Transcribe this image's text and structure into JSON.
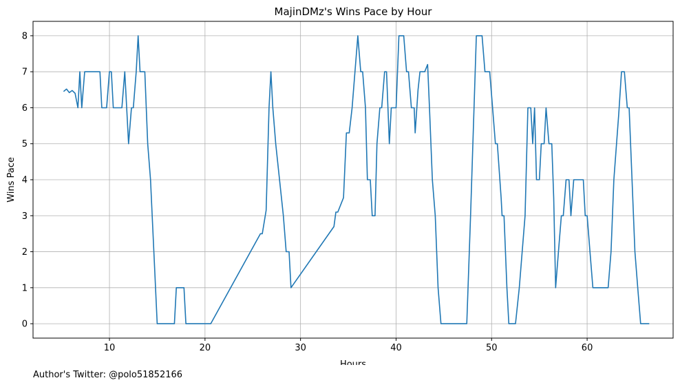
{
  "chart_data": {
    "type": "line",
    "title": "MajinDMz's Wins Pace by Hour",
    "xlabel": "Hours",
    "ylabel": "Wins Pace",
    "xlim": [
      2.0,
      69.0
    ],
    "ylim": [
      -0.4,
      8.4
    ],
    "xticks": [
      10,
      20,
      30,
      40,
      50,
      60
    ],
    "yticks": [
      0,
      1,
      2,
      3,
      4,
      5,
      6,
      7,
      8
    ],
    "grid": true,
    "line_color": "#1f77b4",
    "series": [
      {
        "points": [
          [
            5.2,
            6.45
          ],
          [
            5.5,
            6.52
          ],
          [
            5.8,
            6.42
          ],
          [
            6.1,
            6.48
          ],
          [
            6.4,
            6.4
          ],
          [
            6.7,
            6.0
          ],
          [
            6.9,
            7.0
          ],
          [
            7.1,
            6.0
          ],
          [
            7.4,
            7.0
          ],
          [
            9.0,
            7.0
          ],
          [
            9.2,
            6.0
          ],
          [
            9.7,
            6.0
          ],
          [
            10.0,
            7.0
          ],
          [
            10.2,
            7.0
          ],
          [
            10.4,
            6.0
          ],
          [
            11.3,
            6.0
          ],
          [
            11.6,
            7.0
          ],
          [
            12.0,
            5.0
          ],
          [
            12.3,
            6.0
          ],
          [
            12.5,
            6.0
          ],
          [
            12.8,
            7.0
          ],
          [
            13.0,
            8.0
          ],
          [
            13.2,
            7.0
          ],
          [
            13.7,
            7.0
          ],
          [
            14.0,
            5.0
          ],
          [
            14.3,
            4.0
          ],
          [
            15.0,
            0.0
          ],
          [
            16.8,
            0.0
          ],
          [
            17.0,
            1.0
          ],
          [
            17.8,
            1.0
          ],
          [
            18.0,
            0.0
          ],
          [
            20.6,
            0.0
          ],
          [
            25.8,
            2.5
          ],
          [
            26.0,
            2.5
          ],
          [
            26.4,
            3.15
          ],
          [
            26.7,
            6.0
          ],
          [
            26.9,
            7.0
          ],
          [
            27.1,
            6.0
          ],
          [
            27.4,
            5.0
          ],
          [
            28.2,
            3.0
          ],
          [
            28.5,
            2.0
          ],
          [
            28.8,
            2.0
          ],
          [
            29.0,
            1.0
          ],
          [
            33.5,
            2.7
          ],
          [
            33.7,
            3.1
          ],
          [
            33.9,
            3.1
          ],
          [
            34.5,
            3.5
          ],
          [
            34.8,
            5.3
          ],
          [
            35.1,
            5.3
          ],
          [
            35.4,
            6.0
          ],
          [
            36.0,
            8.0
          ],
          [
            36.3,
            7.0
          ],
          [
            36.5,
            7.0
          ],
          [
            36.8,
            6.0
          ],
          [
            37.0,
            4.0
          ],
          [
            37.3,
            4.0
          ],
          [
            37.5,
            3.0
          ],
          [
            37.8,
            3.0
          ],
          [
            38.0,
            5.0
          ],
          [
            38.3,
            6.0
          ],
          [
            38.5,
            6.0
          ],
          [
            38.8,
            7.0
          ],
          [
            39.0,
            7.0
          ],
          [
            39.3,
            5.0
          ],
          [
            39.5,
            6.0
          ],
          [
            40.0,
            6.0
          ],
          [
            40.3,
            8.0
          ],
          [
            40.8,
            8.0
          ],
          [
            41.1,
            7.0
          ],
          [
            41.3,
            7.0
          ],
          [
            41.6,
            6.0
          ],
          [
            41.9,
            6.0
          ],
          [
            42.0,
            5.3
          ],
          [
            42.3,
            6.5
          ],
          [
            42.5,
            7.0
          ],
          [
            43.0,
            7.0
          ],
          [
            43.3,
            7.2
          ],
          [
            43.5,
            6.0
          ],
          [
            43.8,
            4.0
          ],
          [
            44.1,
            3.0
          ],
          [
            44.4,
            1.0
          ],
          [
            44.7,
            0.0
          ],
          [
            47.4,
            0.0
          ],
          [
            47.8,
            3.0
          ],
          [
            48.4,
            8.0
          ],
          [
            49.0,
            8.0
          ],
          [
            49.3,
            7.0
          ],
          [
            49.8,
            7.0
          ],
          [
            50.1,
            6.0
          ],
          [
            50.4,
            5.0
          ],
          [
            50.6,
            5.0
          ],
          [
            51.0,
            3.5
          ],
          [
            51.1,
            3.0
          ],
          [
            51.3,
            3.0
          ],
          [
            51.6,
            1.0
          ],
          [
            51.8,
            0.0
          ],
          [
            52.5,
            0.0
          ],
          [
            52.9,
            1.0
          ],
          [
            53.2,
            2.0
          ],
          [
            53.5,
            3.0
          ],
          [
            53.8,
            6.0
          ],
          [
            54.1,
            6.0
          ],
          [
            54.3,
            5.0
          ],
          [
            54.5,
            6.0
          ],
          [
            54.7,
            4.0
          ],
          [
            55.0,
            4.0
          ],
          [
            55.2,
            5.0
          ],
          [
            55.5,
            5.0
          ],
          [
            55.7,
            6.0
          ],
          [
            56.0,
            5.0
          ],
          [
            56.3,
            5.0
          ],
          [
            56.5,
            3.5
          ],
          [
            56.7,
            1.0
          ],
          [
            57.0,
            2.0
          ],
          [
            57.3,
            3.0
          ],
          [
            57.5,
            3.0
          ],
          [
            57.8,
            4.0
          ],
          [
            58.1,
            4.0
          ],
          [
            58.3,
            3.0
          ],
          [
            58.6,
            4.0
          ],
          [
            59.6,
            4.0
          ],
          [
            59.8,
            3.0
          ],
          [
            60.0,
            3.0
          ],
          [
            60.3,
            2.0
          ],
          [
            60.6,
            1.0
          ],
          [
            62.2,
            1.0
          ],
          [
            62.5,
            2.0
          ],
          [
            62.8,
            4.0
          ],
          [
            63.3,
            5.8
          ],
          [
            63.6,
            7.0
          ],
          [
            63.9,
            7.0
          ],
          [
            64.2,
            6.0
          ],
          [
            64.4,
            6.0
          ],
          [
            64.7,
            4.0
          ],
          [
            65.0,
            2.0
          ],
          [
            65.3,
            1.0
          ],
          [
            65.6,
            0.0
          ],
          [
            66.5,
            0.0
          ]
        ]
      }
    ]
  },
  "footer": {
    "author": "Author's Twitter: @polo51852166"
  }
}
